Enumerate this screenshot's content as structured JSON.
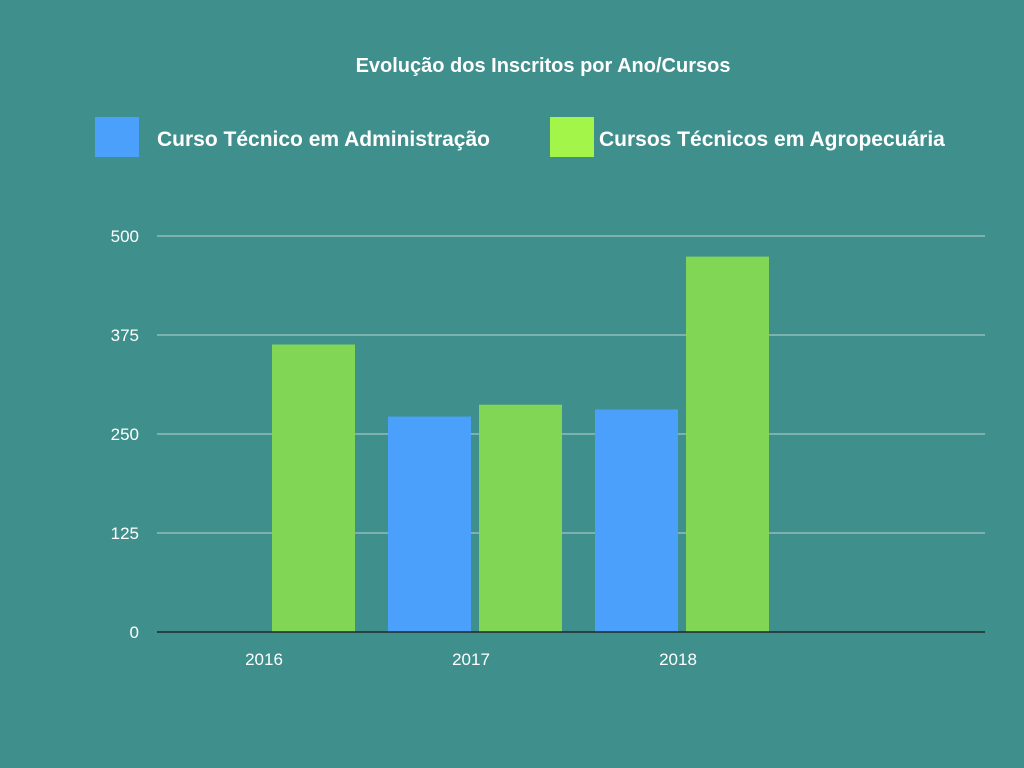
{
  "chart_data": {
    "type": "bar",
    "title": "Evolução dos Inscritos por Ano/Cursos",
    "categories": [
      "2016",
      "2017",
      "2018"
    ],
    "series": [
      {
        "name": "Curso Técnico em Administração",
        "color": "#4aa0fa",
        "values": [
          0,
          272,
          281
        ]
      },
      {
        "name": "Cursos Técnicos em Agropecuária",
        "color": "#82d655",
        "legend_color": "#a4f54a",
        "values": [
          363,
          287,
          474
        ]
      }
    ],
    "ylim": [
      0,
      500
    ],
    "yticks": [
      "0",
      "125",
      "250",
      "375",
      "500"
    ],
    "grid": true,
    "legend": "top"
  },
  "colors": {
    "background": "#3f8f8d",
    "grid": "#b9d3d2",
    "axis": "#1f2a2a",
    "text": "#ffffff"
  }
}
